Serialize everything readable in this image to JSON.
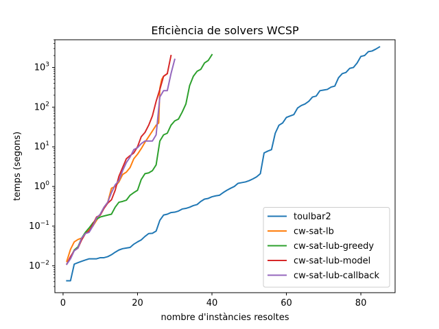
{
  "chart_data": {
    "type": "line",
    "title": "Eficiència de solvers WCSP",
    "xlabel": "nombre d'instàncies resoltes",
    "ylabel": "temps (segons)",
    "xlim": [
      -2.2,
      89.2
    ],
    "ylim": [
      0.0021,
      5000
    ],
    "yscale": "log",
    "grid": false,
    "legend_position": "lower-right",
    "x_ticks": [
      0,
      20,
      40,
      60,
      80
    ],
    "y_ticks": [
      {
        "value": 0.01,
        "base": "10",
        "exp": "−2"
      },
      {
        "value": 0.1,
        "base": "10",
        "exp": "−1"
      },
      {
        "value": 1,
        "base": "10",
        "exp": "0"
      },
      {
        "value": 10,
        "base": "10",
        "exp": "1"
      },
      {
        "value": 100,
        "base": "10",
        "exp": "2"
      },
      {
        "value": 1000,
        "base": "10",
        "exp": "3"
      }
    ],
    "series": [
      {
        "name": "toulbar2",
        "color": "#1f77b4",
        "points": [
          [
            1,
            0.0042
          ],
          [
            2,
            0.0042
          ],
          [
            3,
            0.011
          ],
          [
            4,
            0.012
          ],
          [
            5,
            0.013
          ],
          [
            6,
            0.014
          ],
          [
            7,
            0.015
          ],
          [
            8,
            0.015
          ],
          [
            9,
            0.015
          ],
          [
            10,
            0.016
          ],
          [
            11,
            0.016
          ],
          [
            12,
            0.017
          ],
          [
            13,
            0.019
          ],
          [
            14,
            0.022
          ],
          [
            15,
            0.025
          ],
          [
            16,
            0.027
          ],
          [
            17,
            0.028
          ],
          [
            18,
            0.029
          ],
          [
            19,
            0.035
          ],
          [
            20,
            0.04
          ],
          [
            21,
            0.045
          ],
          [
            22,
            0.055
          ],
          [
            23,
            0.065
          ],
          [
            24,
            0.066
          ],
          [
            25,
            0.075
          ],
          [
            26,
            0.14
          ],
          [
            27,
            0.19
          ],
          [
            28,
            0.2
          ],
          [
            29,
            0.22
          ],
          [
            30,
            0.225
          ],
          [
            31,
            0.24
          ],
          [
            32,
            0.27
          ],
          [
            33,
            0.28
          ],
          [
            34,
            0.3
          ],
          [
            35,
            0.33
          ],
          [
            36,
            0.35
          ],
          [
            37,
            0.42
          ],
          [
            38,
            0.48
          ],
          [
            39,
            0.5
          ],
          [
            40,
            0.55
          ],
          [
            41,
            0.58
          ],
          [
            42,
            0.6
          ],
          [
            43,
            0.7
          ],
          [
            44,
            0.8
          ],
          [
            45,
            0.9
          ],
          [
            46,
            1.0
          ],
          [
            47,
            1.2
          ],
          [
            48,
            1.25
          ],
          [
            49,
            1.3
          ],
          [
            50,
            1.4
          ],
          [
            51,
            1.55
          ],
          [
            52,
            1.75
          ],
          [
            53,
            2.1
          ],
          [
            54,
            7.0
          ],
          [
            55,
            7.8
          ],
          [
            56,
            8.5
          ],
          [
            57,
            22
          ],
          [
            58,
            35
          ],
          [
            59,
            40
          ],
          [
            60,
            55
          ],
          [
            61,
            60
          ],
          [
            62,
            65
          ],
          [
            63,
            95
          ],
          [
            64,
            110
          ],
          [
            65,
            120
          ],
          [
            66,
            140
          ],
          [
            67,
            180
          ],
          [
            68,
            190
          ],
          [
            69,
            260
          ],
          [
            70,
            270
          ],
          [
            71,
            280
          ],
          [
            72,
            320
          ],
          [
            73,
            340
          ],
          [
            74,
            550
          ],
          [
            75,
            700
          ],
          [
            76,
            750
          ],
          [
            77,
            950
          ],
          [
            78,
            1000
          ],
          [
            79,
            1300
          ],
          [
            80,
            1900
          ],
          [
            81,
            2000
          ],
          [
            82,
            2500
          ],
          [
            83,
            2600
          ],
          [
            84,
            2900
          ],
          [
            85,
            3300
          ]
        ]
      },
      {
        "name": "cw-sat-lb",
        "color": "#ff7f0e",
        "points": [
          [
            1,
            0.013
          ],
          [
            2,
            0.026
          ],
          [
            3,
            0.04
          ],
          [
            4,
            0.046
          ],
          [
            5,
            0.05
          ],
          [
            6,
            0.065
          ],
          [
            7,
            0.08
          ],
          [
            8,
            0.1
          ],
          [
            9,
            0.14
          ],
          [
            10,
            0.2
          ],
          [
            11,
            0.3
          ],
          [
            12,
            0.4
          ],
          [
            13,
            0.9
          ],
          [
            14,
            1.0
          ],
          [
            15,
            1.3
          ],
          [
            16,
            2.0
          ],
          [
            17,
            2.3
          ],
          [
            18,
            3.0
          ],
          [
            19,
            5.0
          ],
          [
            20,
            6.5
          ],
          [
            21,
            9.0
          ],
          [
            22,
            13
          ],
          [
            23,
            18
          ],
          [
            24,
            25
          ],
          [
            25,
            35
          ],
          [
            25.7,
            40
          ],
          [
            26,
            300
          ],
          [
            26.5,
            500
          ],
          [
            27,
            600
          ],
          [
            28,
            700
          ]
        ]
      },
      {
        "name": "cw-sat-lub-greedy",
        "color": "#2ca02c",
        "points": [
          [
            1,
            0.011
          ],
          [
            2,
            0.016
          ],
          [
            3,
            0.025
          ],
          [
            4,
            0.03
          ],
          [
            5,
            0.05
          ],
          [
            6,
            0.07
          ],
          [
            7,
            0.09
          ],
          [
            8,
            0.12
          ],
          [
            9,
            0.15
          ],
          [
            10,
            0.17
          ],
          [
            11,
            0.18
          ],
          [
            12,
            0.19
          ],
          [
            13,
            0.2
          ],
          [
            14,
            0.3
          ],
          [
            15,
            0.4
          ],
          [
            16,
            0.42
          ],
          [
            17,
            0.45
          ],
          [
            18,
            0.6
          ],
          [
            19,
            0.7
          ],
          [
            20,
            0.8
          ],
          [
            21,
            1.5
          ],
          [
            22,
            2.1
          ],
          [
            23,
            2.2
          ],
          [
            24,
            2.5
          ],
          [
            25,
            3.5
          ],
          [
            26,
            14
          ],
          [
            27,
            20
          ],
          [
            28,
            22
          ],
          [
            29,
            35
          ],
          [
            30,
            45
          ],
          [
            31,
            50
          ],
          [
            32,
            75
          ],
          [
            33,
            120
          ],
          [
            34,
            350
          ],
          [
            35,
            600
          ],
          [
            36,
            800
          ],
          [
            37,
            900
          ],
          [
            38,
            1300
          ],
          [
            39,
            1500
          ],
          [
            40,
            2100
          ]
        ]
      },
      {
        "name": "cw-sat-lub-model",
        "color": "#d62728",
        "points": [
          [
            1,
            0.011
          ],
          [
            2,
            0.017
          ],
          [
            3,
            0.024
          ],
          [
            4,
            0.028
          ],
          [
            5,
            0.045
          ],
          [
            6,
            0.065
          ],
          [
            7,
            0.075
          ],
          [
            8,
            0.11
          ],
          [
            9,
            0.17
          ],
          [
            10,
            0.19
          ],
          [
            11,
            0.28
          ],
          [
            12,
            0.38
          ],
          [
            13,
            0.46
          ],
          [
            14,
            0.8
          ],
          [
            15,
            1.8
          ],
          [
            16,
            3.0
          ],
          [
            17,
            5.0
          ],
          [
            18,
            6.0
          ],
          [
            19,
            7.0
          ],
          [
            20,
            10
          ],
          [
            21,
            18
          ],
          [
            22,
            23
          ],
          [
            23,
            35
          ],
          [
            24,
            60
          ],
          [
            25,
            140
          ],
          [
            26,
            280
          ],
          [
            27,
            600
          ],
          [
            28,
            700
          ],
          [
            29,
            2000
          ]
        ]
      },
      {
        "name": "cw-sat-lub-callback",
        "color": "#9467bd",
        "points": [
          [
            1,
            0.011
          ],
          [
            2,
            0.015
          ],
          [
            3,
            0.024
          ],
          [
            4,
            0.028
          ],
          [
            5,
            0.05
          ],
          [
            6,
            0.065
          ],
          [
            7,
            0.07
          ],
          [
            8,
            0.1
          ],
          [
            9,
            0.16
          ],
          [
            10,
            0.2
          ],
          [
            11,
            0.3
          ],
          [
            12,
            0.4
          ],
          [
            13,
            0.7
          ],
          [
            14,
            1.1
          ],
          [
            15,
            1.4
          ],
          [
            16,
            2.5
          ],
          [
            17,
            4.0
          ],
          [
            18,
            5.5
          ],
          [
            19,
            8.5
          ],
          [
            20,
            9.5
          ],
          [
            21,
            12
          ],
          [
            22,
            14
          ],
          [
            23,
            14
          ],
          [
            24,
            14
          ],
          [
            25,
            20
          ],
          [
            26,
            180
          ],
          [
            27,
            260
          ],
          [
            28,
            260
          ],
          [
            29,
            700
          ],
          [
            30,
            1600
          ]
        ]
      }
    ]
  }
}
